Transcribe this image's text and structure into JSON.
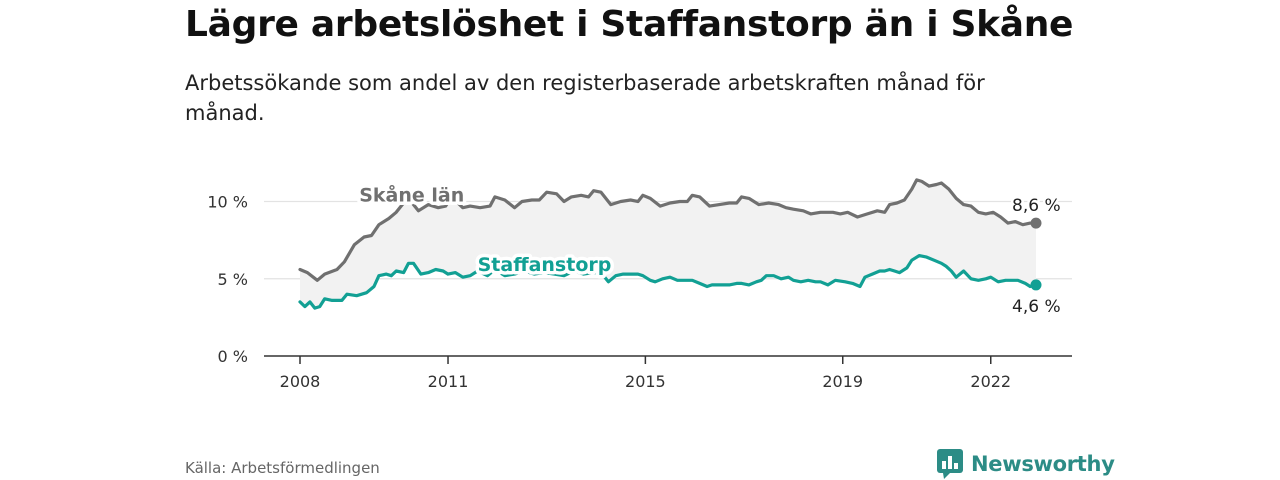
{
  "header": {
    "title": "Lägre arbetslöshet i Staffanstorp än i Skåne",
    "subtitle": "Arbetssökande som andel av den registerbaserade arbetskraften månad för månad."
  },
  "footer": {
    "source": "Källa: Arbetsförmedlingen",
    "brand": "Newsworthy"
  },
  "colors": {
    "skane": "#707070",
    "staffanstorp": "#12a094",
    "band": "#f2f2f2",
    "grid": "#e3e3e3",
    "brand": "#2c8c86"
  },
  "chart_data": {
    "type": "line",
    "title": "Lägre arbetslöshet i Staffanstorp än i Skåne",
    "xlabel": "",
    "ylabel": "",
    "xlim": [
      2008.0,
      2022.917
    ],
    "ylim": [
      0,
      11.5
    ],
    "x_ticks": [
      {
        "value": 2008,
        "label": "2008"
      },
      {
        "value": 2011,
        "label": "2011"
      },
      {
        "value": 2015,
        "label": "2015"
      },
      {
        "value": 2019,
        "label": "2019"
      },
      {
        "value": 2022,
        "label": "2022"
      }
    ],
    "y_ticks": [
      {
        "value": 0,
        "label": "0 %"
      },
      {
        "value": 5,
        "label": "5 %"
      },
      {
        "value": 10,
        "label": "10 %"
      }
    ],
    "series": [
      {
        "name": "Skåne län",
        "color": "#707070",
        "label_at": [
          2009.2,
          10.0
        ],
        "end_label": "8,6 %",
        "points": [
          [
            2008.0,
            5.6
          ],
          [
            2008.15,
            5.4
          ],
          [
            2008.35,
            4.9
          ],
          [
            2008.5,
            5.3
          ],
          [
            2008.75,
            5.6
          ],
          [
            2008.9,
            6.1
          ],
          [
            2009.1,
            7.2
          ],
          [
            2009.3,
            7.7
          ],
          [
            2009.45,
            7.8
          ],
          [
            2009.6,
            8.5
          ],
          [
            2009.8,
            8.9
          ],
          [
            2009.95,
            9.3
          ],
          [
            2010.1,
            9.9
          ],
          [
            2010.25,
            10.0
          ],
          [
            2010.4,
            9.4
          ],
          [
            2010.6,
            9.8
          ],
          [
            2010.8,
            9.6
          ],
          [
            2010.95,
            9.7
          ],
          [
            2011.05,
            10.2
          ],
          [
            2011.2,
            9.9
          ],
          [
            2011.3,
            9.6
          ],
          [
            2011.45,
            9.7
          ],
          [
            2011.65,
            9.6
          ],
          [
            2011.85,
            9.7
          ],
          [
            2011.95,
            10.3
          ],
          [
            2012.15,
            10.1
          ],
          [
            2012.35,
            9.6
          ],
          [
            2012.5,
            10.0
          ],
          [
            2012.7,
            10.1
          ],
          [
            2012.85,
            10.1
          ],
          [
            2013.0,
            10.6
          ],
          [
            2013.2,
            10.5
          ],
          [
            2013.35,
            10.0
          ],
          [
            2013.5,
            10.3
          ],
          [
            2013.7,
            10.4
          ],
          [
            2013.85,
            10.3
          ],
          [
            2013.95,
            10.7
          ],
          [
            2014.1,
            10.6
          ],
          [
            2014.3,
            9.8
          ],
          [
            2014.5,
            10.0
          ],
          [
            2014.7,
            10.1
          ],
          [
            2014.85,
            10.0
          ],
          [
            2014.95,
            10.4
          ],
          [
            2015.1,
            10.2
          ],
          [
            2015.3,
            9.7
          ],
          [
            2015.5,
            9.9
          ],
          [
            2015.7,
            10.0
          ],
          [
            2015.85,
            10.0
          ],
          [
            2015.95,
            10.4
          ],
          [
            2016.1,
            10.3
          ],
          [
            2016.3,
            9.7
          ],
          [
            2016.5,
            9.8
          ],
          [
            2016.7,
            9.9
          ],
          [
            2016.85,
            9.9
          ],
          [
            2016.95,
            10.3
          ],
          [
            2017.1,
            10.2
          ],
          [
            2017.3,
            9.8
          ],
          [
            2017.5,
            9.9
          ],
          [
            2017.7,
            9.8
          ],
          [
            2017.85,
            9.6
          ],
          [
            2018.0,
            9.5
          ],
          [
            2018.2,
            9.4
          ],
          [
            2018.35,
            9.2
          ],
          [
            2018.55,
            9.3
          ],
          [
            2018.8,
            9.3
          ],
          [
            2018.95,
            9.2
          ],
          [
            2019.1,
            9.3
          ],
          [
            2019.3,
            9.0
          ],
          [
            2019.5,
            9.2
          ],
          [
            2019.7,
            9.4
          ],
          [
            2019.85,
            9.3
          ],
          [
            2019.95,
            9.8
          ],
          [
            2020.1,
            9.9
          ],
          [
            2020.25,
            10.1
          ],
          [
            2020.4,
            10.8
          ],
          [
            2020.5,
            11.4
          ],
          [
            2020.6,
            11.3
          ],
          [
            2020.75,
            11.0
          ],
          [
            2020.9,
            11.1
          ],
          [
            2021.0,
            11.2
          ],
          [
            2021.15,
            10.8
          ],
          [
            2021.3,
            10.2
          ],
          [
            2021.45,
            9.8
          ],
          [
            2021.6,
            9.7
          ],
          [
            2021.75,
            9.3
          ],
          [
            2021.9,
            9.2
          ],
          [
            2022.05,
            9.3
          ],
          [
            2022.2,
            9.0
          ],
          [
            2022.35,
            8.6
          ],
          [
            2022.5,
            8.7
          ],
          [
            2022.65,
            8.5
          ],
          [
            2022.8,
            8.6
          ],
          [
            2022.917,
            8.6
          ]
        ]
      },
      {
        "name": "Staffanstorp",
        "color": "#12a094",
        "label_at": [
          2011.6,
          5.5
        ],
        "end_label": "4,6 %",
        "points": [
          [
            2008.0,
            3.5
          ],
          [
            2008.1,
            3.2
          ],
          [
            2008.2,
            3.5
          ],
          [
            2008.3,
            3.1
          ],
          [
            2008.4,
            3.2
          ],
          [
            2008.5,
            3.7
          ],
          [
            2008.65,
            3.6
          ],
          [
            2008.85,
            3.6
          ],
          [
            2008.95,
            4.0
          ],
          [
            2009.15,
            3.9
          ],
          [
            2009.35,
            4.1
          ],
          [
            2009.5,
            4.5
          ],
          [
            2009.6,
            5.2
          ],
          [
            2009.75,
            5.3
          ],
          [
            2009.85,
            5.2
          ],
          [
            2009.95,
            5.5
          ],
          [
            2010.1,
            5.4
          ],
          [
            2010.2,
            6.0
          ],
          [
            2010.3,
            6.0
          ],
          [
            2010.45,
            5.3
          ],
          [
            2010.6,
            5.4
          ],
          [
            2010.75,
            5.6
          ],
          [
            2010.9,
            5.5
          ],
          [
            2011.0,
            5.3
          ],
          [
            2011.15,
            5.4
          ],
          [
            2011.3,
            5.1
          ],
          [
            2011.45,
            5.2
          ],
          [
            2011.6,
            5.5
          ],
          [
            2011.8,
            5.2
          ],
          [
            2011.95,
            5.6
          ],
          [
            2012.15,
            5.2
          ],
          [
            2012.35,
            5.3
          ],
          [
            2012.55,
            5.5
          ],
          [
            2012.75,
            5.3
          ],
          [
            2012.95,
            5.4
          ],
          [
            2013.15,
            5.3
          ],
          [
            2013.35,
            5.2
          ],
          [
            2013.55,
            5.5
          ],
          [
            2013.75,
            5.3
          ],
          [
            2013.95,
            5.4
          ],
          [
            2014.1,
            5.4
          ],
          [
            2014.25,
            4.8
          ],
          [
            2014.4,
            5.2
          ],
          [
            2014.55,
            5.3
          ],
          [
            2014.7,
            5.3
          ],
          [
            2014.85,
            5.3
          ],
          [
            2014.95,
            5.2
          ],
          [
            2015.1,
            4.9
          ],
          [
            2015.2,
            4.8
          ],
          [
            2015.35,
            5.0
          ],
          [
            2015.5,
            5.1
          ],
          [
            2015.65,
            4.9
          ],
          [
            2015.8,
            4.9
          ],
          [
            2015.95,
            4.9
          ],
          [
            2016.1,
            4.7
          ],
          [
            2016.25,
            4.5
          ],
          [
            2016.35,
            4.6
          ],
          [
            2016.5,
            4.6
          ],
          [
            2016.7,
            4.6
          ],
          [
            2016.85,
            4.7
          ],
          [
            2016.95,
            4.7
          ],
          [
            2017.1,
            4.6
          ],
          [
            2017.25,
            4.8
          ],
          [
            2017.35,
            4.9
          ],
          [
            2017.45,
            5.2
          ],
          [
            2017.6,
            5.2
          ],
          [
            2017.75,
            5.0
          ],
          [
            2017.9,
            5.1
          ],
          [
            2018.0,
            4.9
          ],
          [
            2018.15,
            4.8
          ],
          [
            2018.3,
            4.9
          ],
          [
            2018.45,
            4.8
          ],
          [
            2018.55,
            4.8
          ],
          [
            2018.7,
            4.6
          ],
          [
            2018.85,
            4.9
          ],
          [
            2019.05,
            4.8
          ],
          [
            2019.2,
            4.7
          ],
          [
            2019.35,
            4.5
          ],
          [
            2019.45,
            5.1
          ],
          [
            2019.6,
            5.3
          ],
          [
            2019.75,
            5.5
          ],
          [
            2019.85,
            5.5
          ],
          [
            2019.95,
            5.6
          ],
          [
            2020.05,
            5.5
          ],
          [
            2020.15,
            5.4
          ],
          [
            2020.3,
            5.7
          ],
          [
            2020.4,
            6.2
          ],
          [
            2020.55,
            6.5
          ],
          [
            2020.7,
            6.4
          ],
          [
            2020.85,
            6.2
          ],
          [
            2021.0,
            6.0
          ],
          [
            2021.1,
            5.8
          ],
          [
            2021.2,
            5.5
          ],
          [
            2021.3,
            5.1
          ],
          [
            2021.45,
            5.5
          ],
          [
            2021.6,
            5.0
          ],
          [
            2021.75,
            4.9
          ],
          [
            2021.9,
            5.0
          ],
          [
            2022.0,
            5.1
          ],
          [
            2022.15,
            4.8
          ],
          [
            2022.3,
            4.9
          ],
          [
            2022.45,
            4.9
          ],
          [
            2022.55,
            4.9
          ],
          [
            2022.7,
            4.7
          ],
          [
            2022.8,
            4.5
          ],
          [
            2022.917,
            4.6
          ]
        ]
      }
    ]
  }
}
